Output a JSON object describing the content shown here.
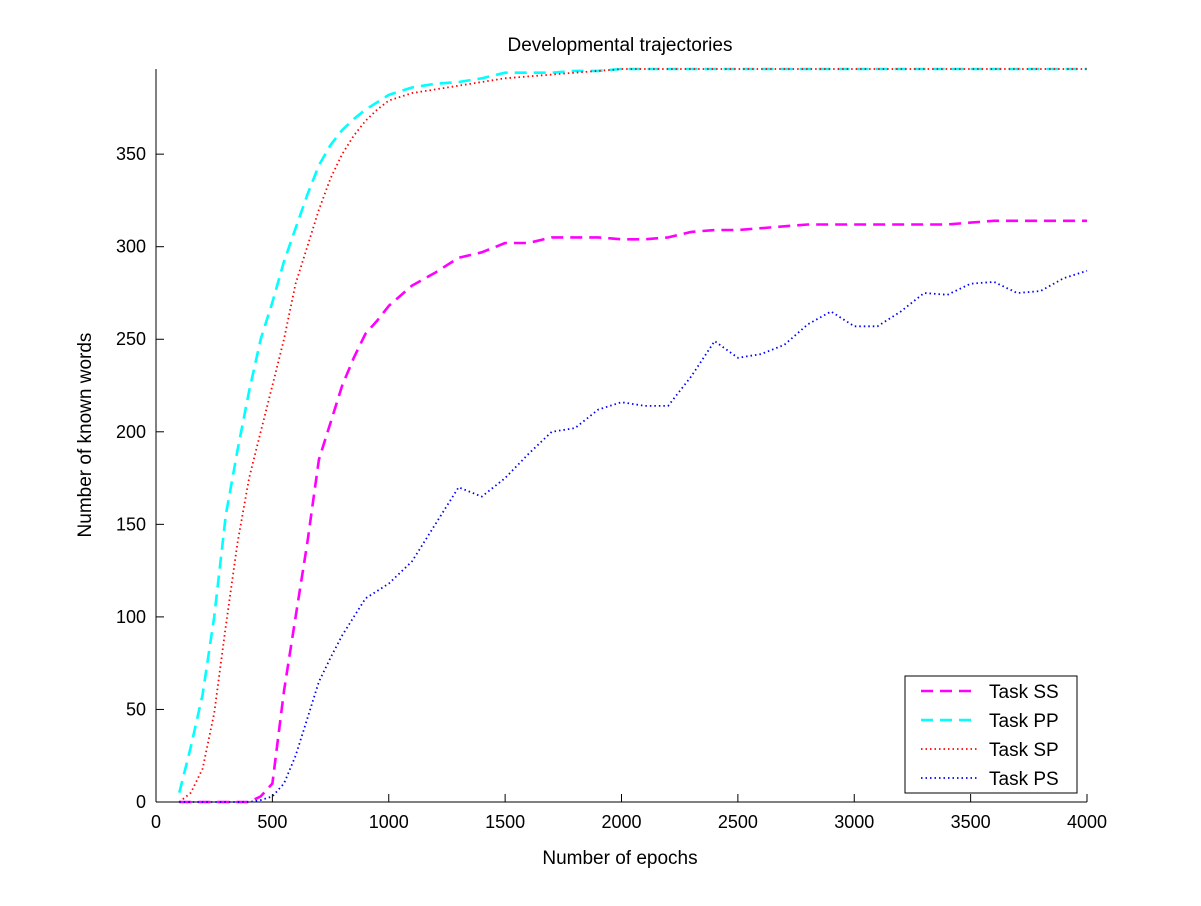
{
  "chart_data": {
    "type": "line",
    "title": "Developmental trajectories",
    "xlabel": "Number of epochs",
    "ylabel": "Number of known words",
    "xlim": [
      0,
      4000
    ],
    "ylim": [
      0,
      396
    ],
    "xticks": [
      0,
      500,
      1000,
      1500,
      2000,
      2500,
      3000,
      3500,
      4000
    ],
    "yticks": [
      0,
      50,
      100,
      150,
      200,
      250,
      300,
      350
    ],
    "grid": false,
    "legend_position": "bottom-right",
    "series": [
      {
        "name": "Task SS",
        "color": "#ff00ff",
        "style": "dashed",
        "points": [
          [
            100,
            0
          ],
          [
            200,
            0
          ],
          [
            300,
            0
          ],
          [
            400,
            0
          ],
          [
            450,
            3
          ],
          [
            500,
            10
          ],
          [
            550,
            60
          ],
          [
            600,
            100
          ],
          [
            650,
            140
          ],
          [
            700,
            185
          ],
          [
            750,
            205
          ],
          [
            800,
            225
          ],
          [
            850,
            240
          ],
          [
            900,
            253
          ],
          [
            950,
            260
          ],
          [
            1000,
            268
          ],
          [
            1100,
            279
          ],
          [
            1200,
            286
          ],
          [
            1300,
            294
          ],
          [
            1400,
            297
          ],
          [
            1500,
            302
          ],
          [
            1600,
            302
          ],
          [
            1700,
            305
          ],
          [
            1800,
            305
          ],
          [
            1900,
            305
          ],
          [
            2000,
            304
          ],
          [
            2100,
            304
          ],
          [
            2200,
            305
          ],
          [
            2300,
            308
          ],
          [
            2400,
            309
          ],
          [
            2500,
            309
          ],
          [
            2600,
            310
          ],
          [
            2700,
            311
          ],
          [
            2800,
            312
          ],
          [
            2900,
            312
          ],
          [
            3000,
            312
          ],
          [
            3100,
            312
          ],
          [
            3200,
            312
          ],
          [
            3300,
            312
          ],
          [
            3400,
            312
          ],
          [
            3500,
            313
          ],
          [
            3600,
            314
          ],
          [
            3700,
            314
          ],
          [
            3800,
            314
          ],
          [
            3900,
            314
          ],
          [
            4000,
            314
          ]
        ]
      },
      {
        "name": "Task PP",
        "color": "#00ffff",
        "style": "dashed",
        "points": [
          [
            100,
            5
          ],
          [
            150,
            30
          ],
          [
            200,
            58
          ],
          [
            250,
            100
          ],
          [
            300,
            155
          ],
          [
            350,
            190
          ],
          [
            400,
            222
          ],
          [
            450,
            250
          ],
          [
            500,
            270
          ],
          [
            550,
            292
          ],
          [
            600,
            310
          ],
          [
            650,
            328
          ],
          [
            700,
            344
          ],
          [
            750,
            355
          ],
          [
            800,
            363
          ],
          [
            850,
            369
          ],
          [
            900,
            374
          ],
          [
            950,
            378
          ],
          [
            1000,
            382
          ],
          [
            1100,
            386
          ],
          [
            1200,
            388
          ],
          [
            1300,
            389
          ],
          [
            1400,
            391
          ],
          [
            1500,
            394
          ],
          [
            1600,
            394
          ],
          [
            1700,
            394
          ],
          [
            1800,
            395
          ],
          [
            1900,
            395
          ],
          [
            2000,
            396
          ],
          [
            2500,
            396
          ],
          [
            3000,
            396
          ],
          [
            3500,
            396
          ],
          [
            4000,
            396
          ]
        ]
      },
      {
        "name": "Task SP",
        "color": "#ff0000",
        "style": "dotted",
        "points": [
          [
            100,
            0
          ],
          [
            150,
            5
          ],
          [
            200,
            18
          ],
          [
            250,
            48
          ],
          [
            300,
            95
          ],
          [
            350,
            140
          ],
          [
            400,
            175
          ],
          [
            450,
            200
          ],
          [
            500,
            225
          ],
          [
            550,
            250
          ],
          [
            600,
            280
          ],
          [
            650,
            300
          ],
          [
            700,
            320
          ],
          [
            750,
            337
          ],
          [
            800,
            350
          ],
          [
            850,
            360
          ],
          [
            900,
            368
          ],
          [
            950,
            374
          ],
          [
            1000,
            379
          ],
          [
            1100,
            383
          ],
          [
            1200,
            385
          ],
          [
            1300,
            387
          ],
          [
            1400,
            389
          ],
          [
            1500,
            391
          ],
          [
            1600,
            392
          ],
          [
            1700,
            393
          ],
          [
            1800,
            394
          ],
          [
            1900,
            395
          ],
          [
            2000,
            396
          ],
          [
            2500,
            396
          ],
          [
            3000,
            396
          ],
          [
            3500,
            396
          ],
          [
            4000,
            396
          ]
        ]
      },
      {
        "name": "Task PS",
        "color": "#0000ff",
        "style": "dotted",
        "points": [
          [
            100,
            0
          ],
          [
            200,
            0
          ],
          [
            300,
            0
          ],
          [
            400,
            0
          ],
          [
            450,
            1
          ],
          [
            500,
            3
          ],
          [
            550,
            10
          ],
          [
            600,
            25
          ],
          [
            650,
            45
          ],
          [
            700,
            65
          ],
          [
            750,
            78
          ],
          [
            800,
            90
          ],
          [
            850,
            100
          ],
          [
            900,
            110
          ],
          [
            1000,
            118
          ],
          [
            1100,
            130
          ],
          [
            1200,
            150
          ],
          [
            1300,
            170
          ],
          [
            1400,
            165
          ],
          [
            1500,
            175
          ],
          [
            1600,
            188
          ],
          [
            1700,
            200
          ],
          [
            1800,
            202
          ],
          [
            1900,
            212
          ],
          [
            2000,
            216
          ],
          [
            2100,
            214
          ],
          [
            2200,
            214
          ],
          [
            2300,
            230
          ],
          [
            2400,
            249
          ],
          [
            2500,
            240
          ],
          [
            2600,
            242
          ],
          [
            2700,
            247
          ],
          [
            2800,
            258
          ],
          [
            2900,
            265
          ],
          [
            3000,
            257
          ],
          [
            3100,
            257
          ],
          [
            3200,
            265
          ],
          [
            3300,
            275
          ],
          [
            3400,
            274
          ],
          [
            3500,
            280
          ],
          [
            3600,
            281
          ],
          [
            3700,
            275
          ],
          [
            3800,
            276
          ],
          [
            3900,
            283
          ],
          [
            4000,
            287
          ]
        ]
      }
    ]
  }
}
